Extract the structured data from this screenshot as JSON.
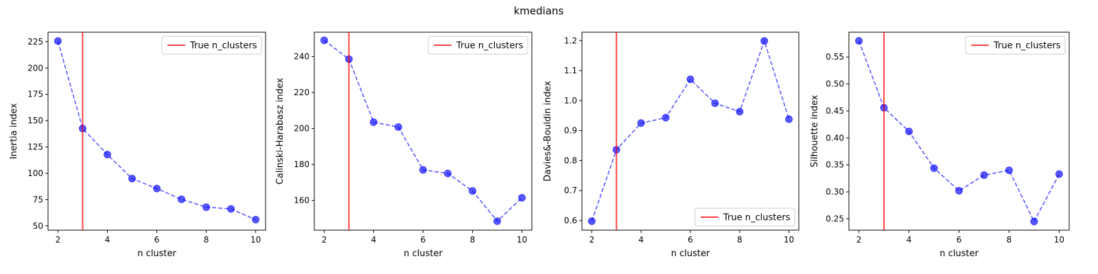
{
  "figure": {
    "suptitle": "kmedians"
  },
  "colors": {
    "series": "#0000ff",
    "true_line": "#ff0000"
  },
  "chart_data": [
    {
      "type": "line",
      "xlabel": "n cluster",
      "ylabel": "Inertia index",
      "x": [
        2,
        3,
        4,
        5,
        6,
        7,
        8,
        9,
        10
      ],
      "values": [
        225.6,
        142.5,
        117.8,
        95.0,
        85.5,
        75.3,
        67.8,
        66.2,
        56.0
      ],
      "xlim": [
        1.6,
        10.4
      ],
      "ylim": [
        46.0,
        234.0
      ],
      "yticks": [
        50,
        75,
        100,
        125,
        150,
        175,
        200,
        225
      ],
      "xticks": [
        2,
        4,
        6,
        8,
        10
      ],
      "true_n_clusters": 3,
      "legend": {
        "label": "True n_clusters",
        "loc": "upper right"
      }
    },
    {
      "type": "line",
      "xlabel": "n cluster",
      "ylabel": "Calinski-Harabasz index",
      "x": [
        2,
        3,
        4,
        5,
        6,
        7,
        8,
        9,
        10
      ],
      "values": [
        249.0,
        238.5,
        203.5,
        200.8,
        177.0,
        175.0,
        165.3,
        148.5,
        161.5
      ],
      "xlim": [
        1.6,
        10.4
      ],
      "ylim": [
        143.5,
        253.5
      ],
      "yticks": [
        160,
        180,
        200,
        220,
        240
      ],
      "xticks": [
        2,
        4,
        6,
        8,
        10
      ],
      "true_n_clusters": 3,
      "legend": {
        "label": "True n_clusters",
        "loc": "upper right"
      }
    },
    {
      "type": "line",
      "xlabel": "n cluster",
      "ylabel": "Davies&-Bouldin index",
      "x": [
        2,
        3,
        4,
        5,
        6,
        7,
        8,
        9,
        10
      ],
      "values": [
        0.598,
        0.836,
        0.925,
        0.943,
        1.071,
        0.991,
        0.963,
        1.199,
        0.938
      ],
      "xlim": [
        1.6,
        10.4
      ],
      "ylim": [
        0.568,
        1.228
      ],
      "yticks": [
        0.6,
        0.7,
        0.8,
        0.9,
        1.0,
        1.1,
        1.2
      ],
      "xticks": [
        2,
        4,
        6,
        8,
        10
      ],
      "true_n_clusters": 3,
      "legend": {
        "label": "True n_clusters",
        "loc": "lower right"
      }
    },
    {
      "type": "line",
      "xlabel": "n cluster",
      "ylabel": "Silhouette index",
      "x": [
        2,
        3,
        4,
        5,
        6,
        7,
        8,
        9,
        10
      ],
      "values": [
        0.58,
        0.456,
        0.412,
        0.344,
        0.302,
        0.331,
        0.34,
        0.245,
        0.333
      ],
      "xlim": [
        1.6,
        10.4
      ],
      "ylim": [
        0.229,
        0.596
      ],
      "yticks": [
        0.25,
        0.3,
        0.35,
        0.4,
        0.45,
        0.5,
        0.55
      ],
      "xticks": [
        2,
        4,
        6,
        8,
        10
      ],
      "true_n_clusters": 3,
      "legend": {
        "label": "True n_clusters",
        "loc": "upper right"
      }
    }
  ]
}
